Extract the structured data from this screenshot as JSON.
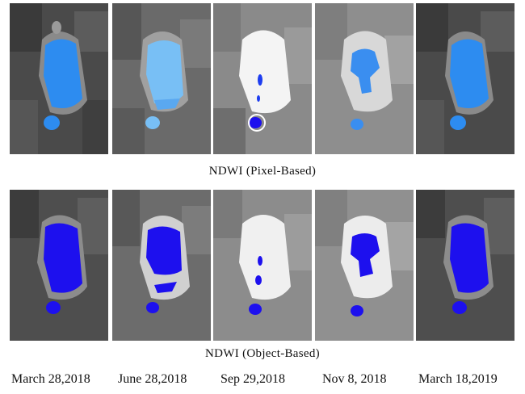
{
  "figure": {
    "rows": [
      {
        "label": "NDWI  (Pixel-Based)"
      },
      {
        "label": "NDWI  (Object-Based)"
      }
    ],
    "dates": [
      "March 28,2018",
      "June 28,2018",
      "Sep 29,2018",
      "Nov 8, 2018",
      "March 18,2019"
    ],
    "colors": {
      "pixel_water": "#2d8cf0",
      "pixel_water_light": "#78bff5",
      "object_water": "#1d10ee",
      "lake_white": "#f4f4f4",
      "background_gray": "#6b6b6b"
    }
  }
}
